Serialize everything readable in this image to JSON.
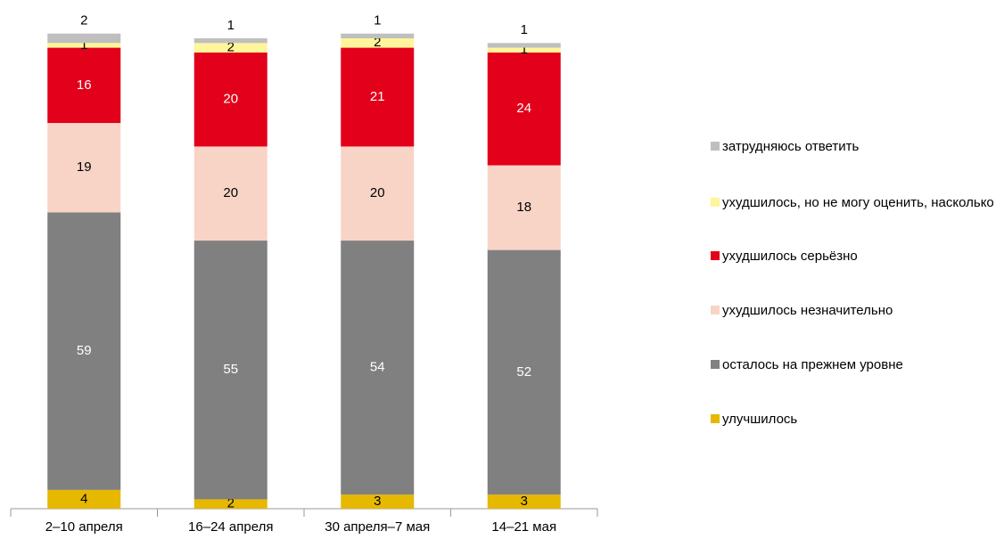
{
  "chart_data": {
    "type": "stacked_bar",
    "categories": [
      "2–10 апреля",
      "16–24 апреля",
      "30 апреля–7 мая",
      "14–21 мая"
    ],
    "series": [
      {
        "name": "улучшилось",
        "color": "#e6b800",
        "label_color": "#000000",
        "values": [
          4,
          2,
          3,
          3
        ]
      },
      {
        "name": "осталось на прежнем уровне",
        "color": "#808080",
        "label_color": "#ffffff",
        "values": [
          59,
          55,
          54,
          52
        ]
      },
      {
        "name": "ухудшилось незначительно",
        "color": "#f8d4c6",
        "label_color": "#000000",
        "values": [
          19,
          20,
          20,
          18
        ]
      },
      {
        "name": "ухудшилось серьёзно",
        "color": "#e2001a",
        "label_color": "#ffffff",
        "values": [
          16,
          20,
          21,
          24
        ]
      },
      {
        "name": "ухудшилось, но не могу оценить, насколько",
        "color": "#fff59a",
        "label_color": "#000000",
        "values": [
          1,
          2,
          2,
          1
        ]
      },
      {
        "name": "затрудняюсь ответить",
        "color": "#bfbfbf",
        "label_color": "#000000",
        "values": [
          2,
          1,
          1,
          1
        ]
      }
    ],
    "legend": "right"
  }
}
